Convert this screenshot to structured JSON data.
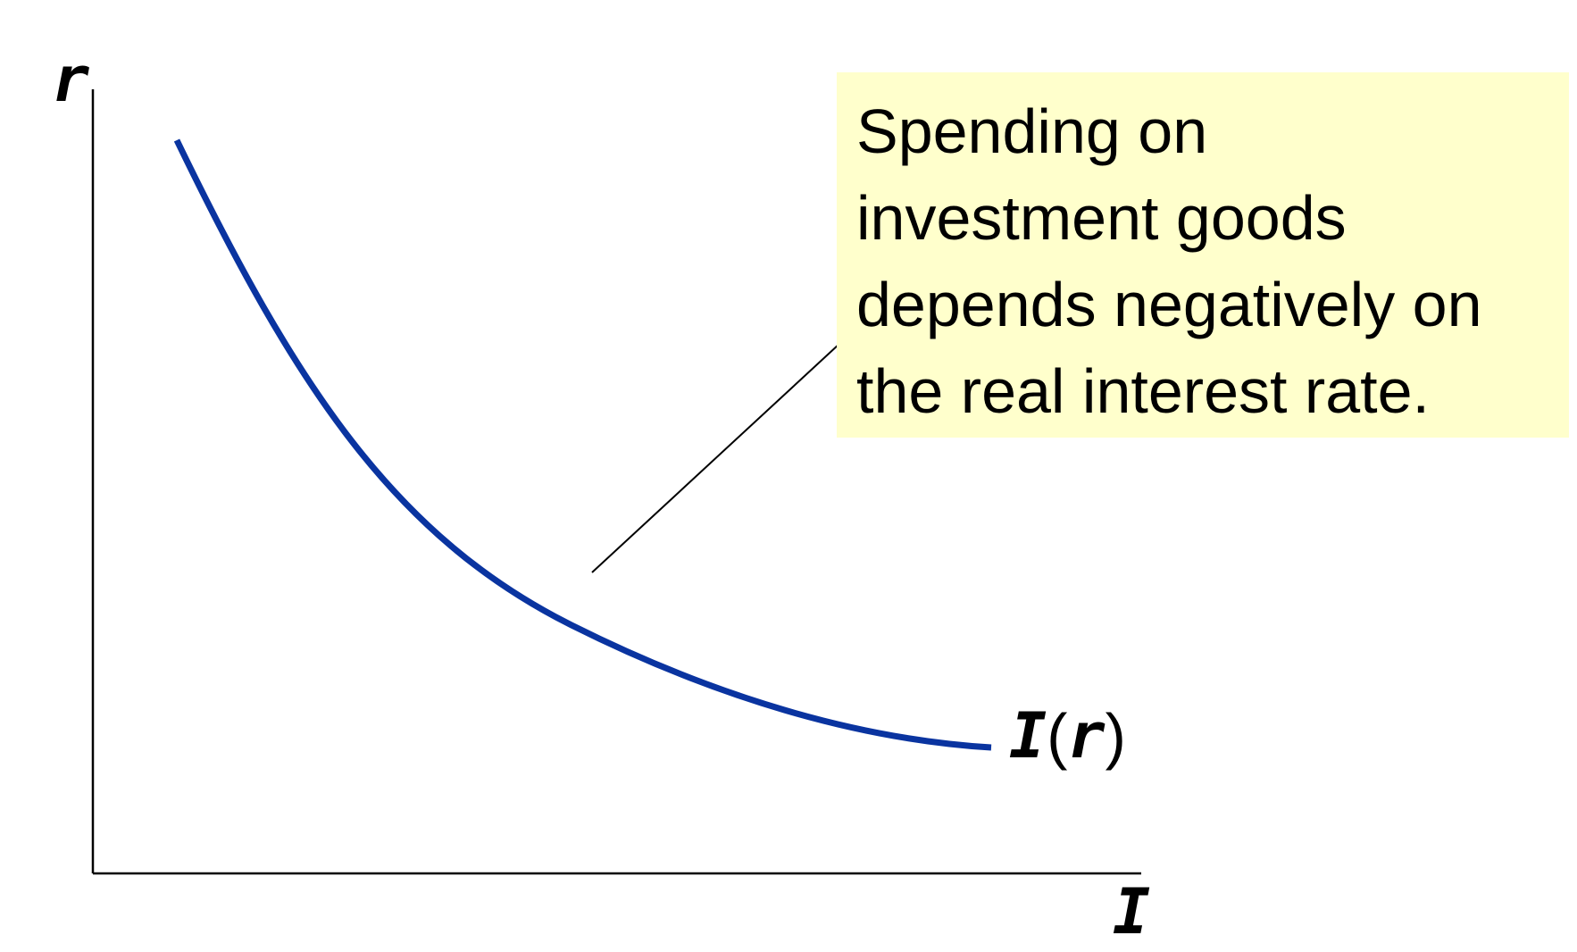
{
  "diagram": {
    "y_axis_label": "r",
    "x_axis_label": "I",
    "curve": {
      "label_function": "I",
      "label_argument": "r",
      "label_open_paren": "(",
      "label_close_paren": ")",
      "color": "#0a34a0",
      "shape": "downward-sloping convex"
    },
    "callout": {
      "text": "Spending on\ninvestment goods\ndepends negatively on\nthe real interest rate.",
      "background": "#ffffcc"
    }
  }
}
